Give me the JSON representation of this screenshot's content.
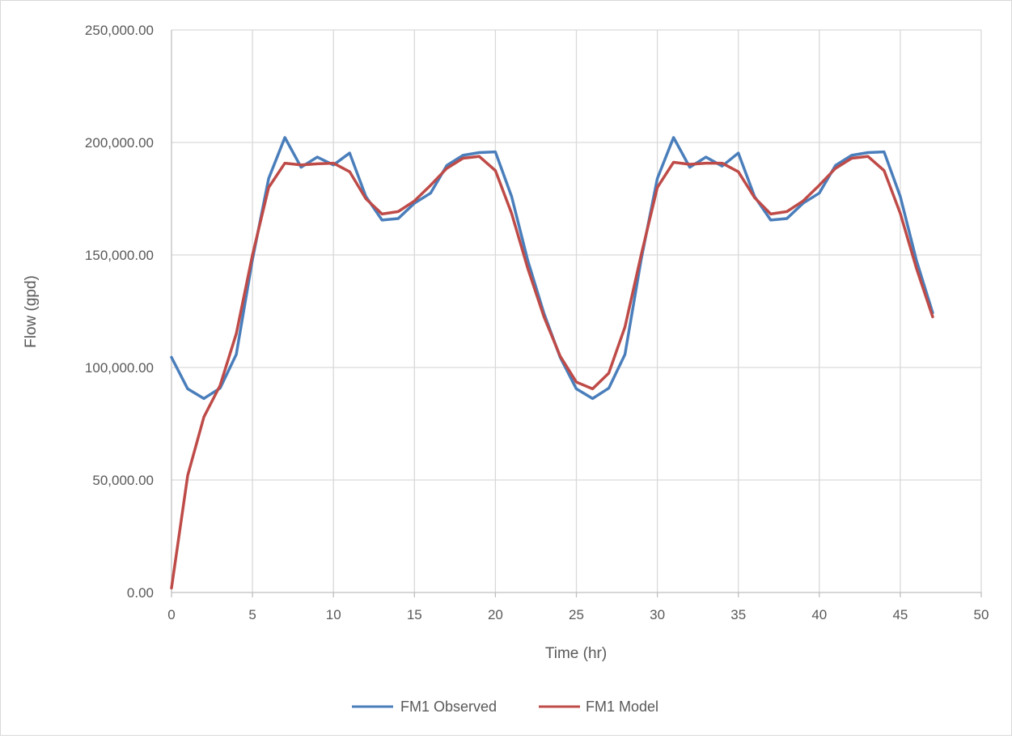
{
  "chart_data": {
    "type": "line",
    "title": "",
    "xlabel": "Time (hr)",
    "ylabel": "Flow (gpd)",
    "xlim": [
      0,
      50
    ],
    "ylim": [
      0,
      250000
    ],
    "grid": true,
    "legend_position": "bottom",
    "x_ticks": [
      "0",
      "5",
      "10",
      "15",
      "20",
      "25",
      "30",
      "35",
      "40",
      "45",
      "50"
    ],
    "y_ticks": [
      "0.00",
      "50,000.00",
      "100,000.00",
      "150,000.00",
      "200,000.00",
      "250,000.00"
    ],
    "x": [
      0,
      1,
      2,
      3,
      4,
      5,
      6,
      7,
      8,
      9,
      10,
      11,
      12,
      13,
      14,
      15,
      16,
      17,
      18,
      19,
      20,
      21,
      22,
      23,
      24,
      25,
      26,
      27,
      28,
      29,
      30,
      31,
      32,
      33,
      34,
      35,
      36,
      37,
      38,
      39,
      40,
      41,
      42,
      43,
      44,
      45,
      46,
      47
    ],
    "series": [
      {
        "name": "FM1 Observed",
        "color": "#4a7ebb",
        "values": [
          104500,
          90500,
          86200,
          90800,
          105800,
          148000,
          184000,
          202200,
          189000,
          193500,
          190000,
          195300,
          176000,
          165500,
          166200,
          173000,
          177500,
          189800,
          194300,
          195500,
          195800,
          176000,
          147500,
          124000,
          104500,
          90500,
          86200,
          90800,
          105800,
          148000,
          184000,
          202200,
          189000,
          193500,
          189500,
          195300,
          176000,
          165500,
          166200,
          173000,
          177500,
          189800,
          194300,
          195500,
          195800,
          176000,
          147500,
          124300
        ]
      },
      {
        "name": "FM1 Model",
        "color": "#be4b48",
        "values": [
          2000,
          52000,
          78000,
          92000,
          115000,
          150000,
          180000,
          190800,
          190000,
          190500,
          190800,
          187000,
          175000,
          168200,
          169300,
          174000,
          181000,
          188500,
          193000,
          193800,
          187500,
          168500,
          144000,
          122500,
          105000,
          93500,
          90500,
          97500,
          118000,
          150000,
          180000,
          191200,
          190300,
          190800,
          190800,
          187000,
          175500,
          168200,
          169300,
          174000,
          181000,
          188500,
          193000,
          193800,
          187500,
          168500,
          144000,
          122500
        ]
      }
    ]
  }
}
